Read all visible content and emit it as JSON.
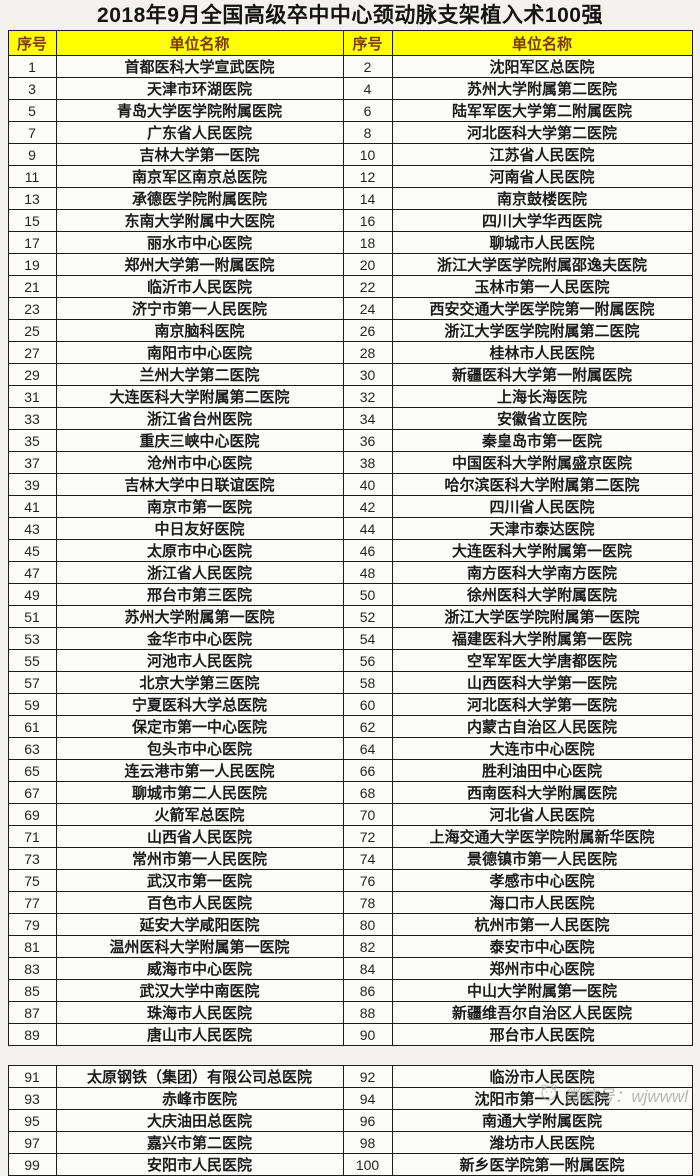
{
  "title": "2018年9月全国高级卒中中心颈动脉支架植入术100强",
  "header": {
    "rank": "序号",
    "name": "单位名称"
  },
  "table1": {
    "rows": [
      [
        1,
        "首都医科大学宣武医院",
        2,
        "沈阳军区总医院"
      ],
      [
        3,
        "天津市环湖医院",
        4,
        "苏州大学附属第二医院"
      ],
      [
        5,
        "青岛大学医学院附属医院",
        6,
        "陆军军医大学第二附属医院"
      ],
      [
        7,
        "广东省人民医院",
        8,
        "河北医科大学第二医院"
      ],
      [
        9,
        "吉林大学第一医院",
        10,
        "江苏省人民医院"
      ],
      [
        11,
        "南京军区南京总医院",
        12,
        "河南省人民医院"
      ],
      [
        13,
        "承德医学院附属医院",
        14,
        "南京鼓楼医院"
      ],
      [
        15,
        "东南大学附属中大医院",
        16,
        "四川大学华西医院"
      ],
      [
        17,
        "丽水市中心医院",
        18,
        "聊城市人民医院"
      ],
      [
        19,
        "郑州大学第一附属医院",
        20,
        "浙江大学医学院附属邵逸夫医院"
      ],
      [
        21,
        "临沂市人民医院",
        22,
        "玉林市第一人民医院"
      ],
      [
        23,
        "济宁市第一人民医院",
        24,
        "西安交通大学医学院第一附属医院"
      ],
      [
        25,
        "南京脑科医院",
        26,
        "浙江大学医学院附属第二医院"
      ],
      [
        27,
        "南阳市中心医院",
        28,
        "桂林市人民医院"
      ],
      [
        29,
        "兰州大学第二医院",
        30,
        "新疆医科大学第一附属医院"
      ],
      [
        31,
        "大连医科大学附属第二医院",
        32,
        "上海长海医院"
      ],
      [
        33,
        "浙江省台州医院",
        34,
        "安徽省立医院"
      ],
      [
        35,
        "重庆三峡中心医院",
        36,
        "秦皇岛市第一医院"
      ],
      [
        37,
        "沧州市中心医院",
        38,
        "中国医科大学附属盛京医院"
      ],
      [
        39,
        "吉林大学中日联谊医院",
        40,
        "哈尔滨医科大学附属第二医院"
      ],
      [
        41,
        "南京市第一医院",
        42,
        "四川省人民医院"
      ],
      [
        43,
        "中日友好医院",
        44,
        "天津市泰达医院"
      ],
      [
        45,
        "太原市中心医院",
        46,
        "大连医科大学附属第一医院"
      ],
      [
        47,
        "浙江省人民医院",
        48,
        "南方医科大学南方医院"
      ],
      [
        49,
        "邢台市第三医院",
        50,
        "徐州医科大学附属医院"
      ],
      [
        51,
        "苏州大学附属第一医院",
        52,
        "浙江大学医学院附属第一医院"
      ],
      [
        53,
        "金华市中心医院",
        54,
        "福建医科大学附属第一医院"
      ],
      [
        55,
        "河池市人民医院",
        56,
        "空军军医大学唐都医院"
      ],
      [
        57,
        "北京大学第三医院",
        58,
        "山西医科大学第一医院"
      ],
      [
        59,
        "宁夏医科大学总医院",
        60,
        "河北医科大学第一医院"
      ],
      [
        61,
        "保定市第一中心医院",
        62,
        "内蒙古自治区人民医院"
      ],
      [
        63,
        "包头市中心医院",
        64,
        "大连市中心医院"
      ],
      [
        65,
        "连云港市第一人民医院",
        66,
        "胜利油田中心医院"
      ],
      [
        67,
        "聊城市第二人民医院",
        68,
        "西南医科大学附属医院"
      ],
      [
        69,
        "火箭军总医院",
        70,
        "河北省人民医院"
      ],
      [
        71,
        "山西省人民医院",
        72,
        "上海交通大学医学院附属新华医院"
      ],
      [
        73,
        "常州市第一人民医院",
        74,
        "景德镇市第一人民医院"
      ],
      [
        75,
        "武汉市第一医院",
        76,
        "孝感市中心医院"
      ],
      [
        77,
        "百色市人民医院",
        78,
        "海口市人民医院"
      ],
      [
        79,
        "延安大学咸阳医院",
        80,
        "杭州市第一人民医院"
      ],
      [
        81,
        "温州医科大学附属第一医院",
        82,
        "泰安市中心医院"
      ],
      [
        83,
        "威海市中心医院",
        84,
        "郑州市中心医院"
      ],
      [
        85,
        "武汉大学中南医院",
        86,
        "中山大学附属第一医院"
      ],
      [
        87,
        "珠海市人民医院",
        88,
        "新疆维吾尔自治区人民医院"
      ],
      [
        89,
        "唐山市人民医院",
        90,
        "邢台市人民医院"
      ]
    ]
  },
  "table2": {
    "rows": [
      [
        91,
        "太原钢铁（集团）有限公司总医院",
        92,
        "临汾市人民医院"
      ],
      [
        93,
        "赤峰市医院",
        94,
        "沈阳市第一人民医院"
      ],
      [
        95,
        "大庆油田总医院",
        96,
        "南通大学附属医院"
      ],
      [
        97,
        "嘉兴市第二医院",
        98,
        "潍坊市人民医院"
      ],
      [
        99,
        "安阳市人民医院",
        100,
        "新乡医学院第一附属医院"
      ]
    ]
  },
  "watermark": "微信号：wjwwwl",
  "colors": {
    "header_bg": "#ffff00",
    "header_text": "#7b3a00",
    "border": "#1c1c1c",
    "title_text": "#141414"
  }
}
